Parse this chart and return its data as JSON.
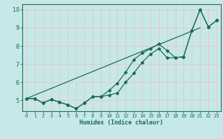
{
  "title": "",
  "xlabel": "Humidex (Indice chaleur)",
  "bg_color": "#c6e8e8",
  "grid_color": "#e8c8c8",
  "line_color": "#1a6b5a",
  "xlim": [
    -0.5,
    23.5
  ],
  "ylim": [
    4.4,
    10.3
  ],
  "yticks": [
    5,
    6,
    7,
    8,
    9,
    10
  ],
  "xticks": [
    0,
    1,
    2,
    3,
    4,
    5,
    6,
    7,
    8,
    9,
    10,
    11,
    12,
    13,
    14,
    15,
    16,
    17,
    18,
    19,
    20,
    21,
    22,
    23
  ],
  "series1_x": [
    0,
    1,
    2,
    3,
    4,
    5,
    6,
    7,
    8,
    9,
    10,
    11,
    12,
    13,
    14,
    15,
    16,
    17,
    18,
    19,
    20,
    21,
    22,
    23
  ],
  "series1_y": [
    5.1,
    5.1,
    4.85,
    5.05,
    4.9,
    4.75,
    4.55,
    4.85,
    5.2,
    5.2,
    5.3,
    5.4,
    6.0,
    6.5,
    7.1,
    7.55,
    7.85,
    7.35,
    7.35,
    7.4,
    8.85,
    10.0,
    9.05,
    9.4
  ],
  "series2_x": [
    0,
    1,
    2,
    3,
    4,
    5,
    6,
    7,
    8,
    9,
    10,
    11,
    12,
    13,
    14,
    15,
    16,
    17,
    18,
    19,
    20,
    21,
    22,
    23
  ],
  "series2_y": [
    5.1,
    5.1,
    4.85,
    5.05,
    4.9,
    4.75,
    4.55,
    4.85,
    5.2,
    5.2,
    5.55,
    5.95,
    6.55,
    7.25,
    7.6,
    7.85,
    8.1,
    7.75,
    7.35,
    7.4,
    8.85,
    10.0,
    9.05,
    9.4
  ],
  "trend_x": [
    0,
    21
  ],
  "trend_y": [
    5.1,
    9.0
  ]
}
